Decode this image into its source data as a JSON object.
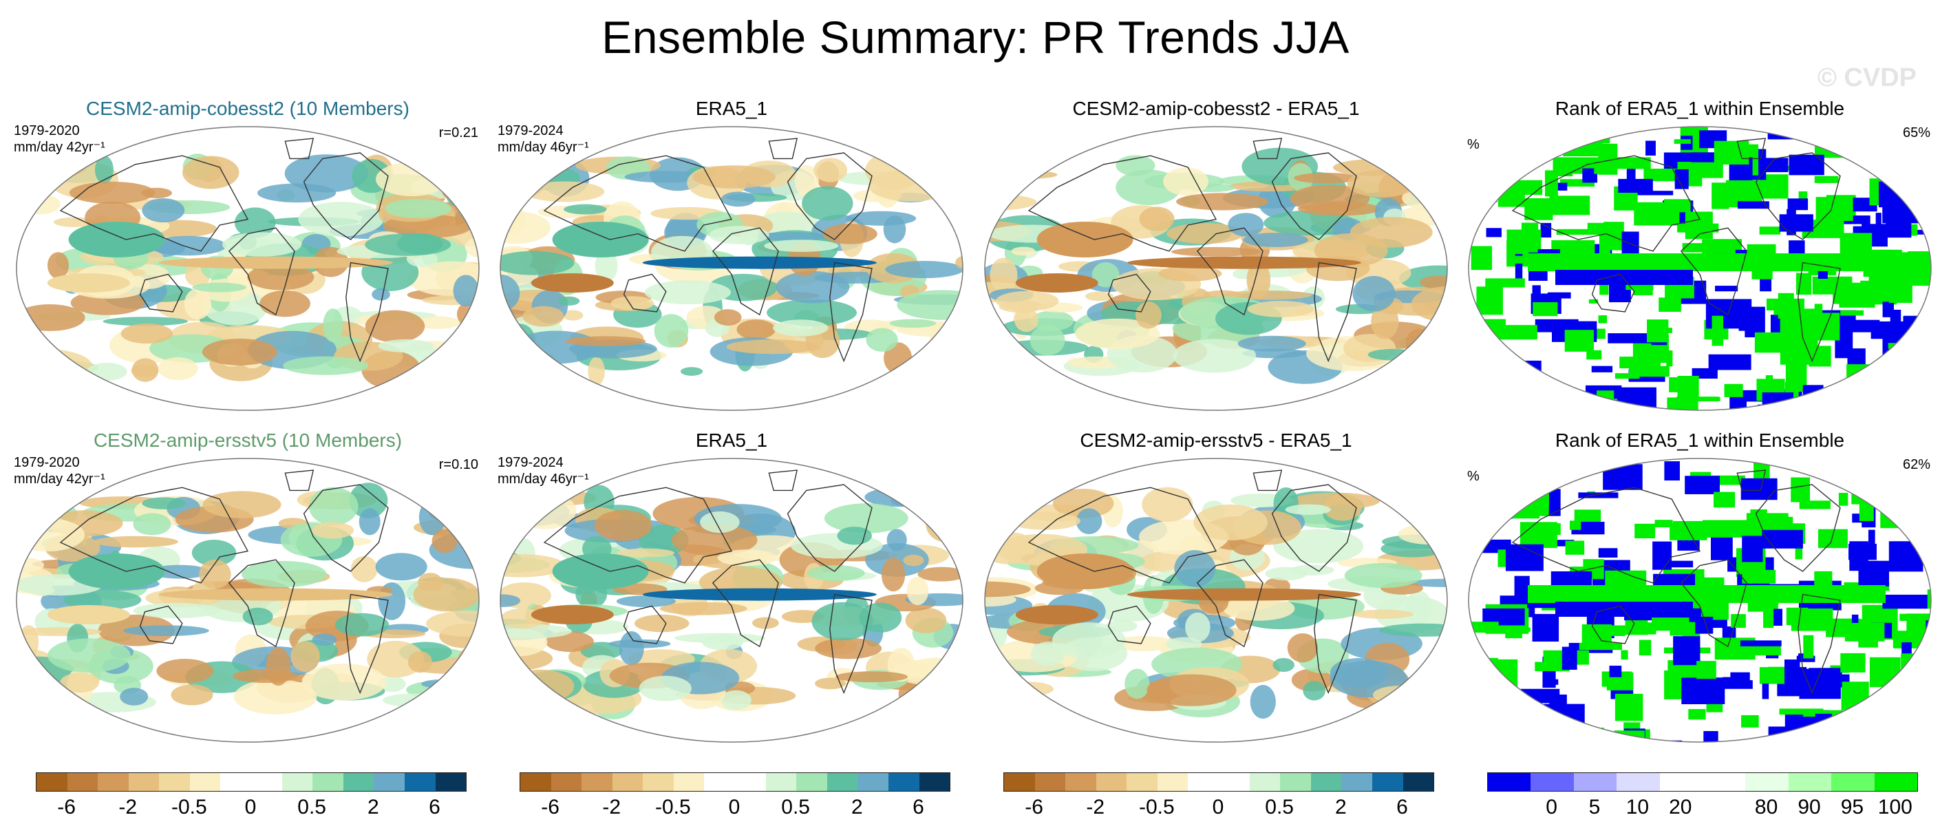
{
  "title": "Ensemble Summary: PR Trends JJA",
  "watermark": "© CVDP",
  "rows": [
    {
      "model": {
        "title": "CESM2-amip-cobesst2 (10 Members)",
        "title_color": "#1f6f8b",
        "period": "1979-2020",
        "units": "mm/day 42yr⁻¹",
        "corr": "r=0.21"
      },
      "obs": {
        "title": "ERA5_1",
        "period": "1979-2024",
        "units": "mm/day 46yr⁻¹"
      },
      "diff": {
        "title": "CESM2-amip-cobesst2 - ERA5_1"
      },
      "rank": {
        "title": "Rank of ERA5_1 within Ensemble",
        "unit": "%",
        "pct": "65%"
      }
    },
    {
      "model": {
        "title": "CESM2-amip-ersstv5 (10 Members)",
        "title_color": "#5d9a6a",
        "period": "1979-2020",
        "units": "mm/day 42yr⁻¹",
        "corr": "r=0.10"
      },
      "obs": {
        "title": "ERA5_1",
        "period": "1979-2024",
        "units": "mm/day 46yr⁻¹"
      },
      "diff": {
        "title": "CESM2-amip-ersstv5 - ERA5_1"
      },
      "rank": {
        "title": "Rank of ERA5_1 within Ensemble",
        "unit": "%",
        "pct": "62%"
      }
    }
  ],
  "colorbars": {
    "trend": {
      "colors": [
        "#a6611a",
        "#c07c3a",
        "#d49a5a",
        "#e6bf7e",
        "#f1d89d",
        "#fbf0c3",
        "#ffffff",
        "#ffffff",
        "#d6f5d6",
        "#a3e6b3",
        "#5cc0a0",
        "#6aaac8",
        "#0f6aa5",
        "#08365a"
      ],
      "labels": [
        "-6",
        "-2",
        "-0.5",
        "0",
        "0.5",
        "2",
        "6"
      ]
    },
    "rank": {
      "colors": [
        "#0000ee",
        "#6666ff",
        "#aaaaff",
        "#dcdcff",
        "#ffffff",
        "#ffffff",
        "#e6ffe6",
        "#b4ffb4",
        "#66ff66",
        "#00ee00"
      ],
      "labels": [
        "0",
        "5",
        "10",
        "20",
        "80",
        "90",
        "95",
        "100"
      ]
    }
  }
}
